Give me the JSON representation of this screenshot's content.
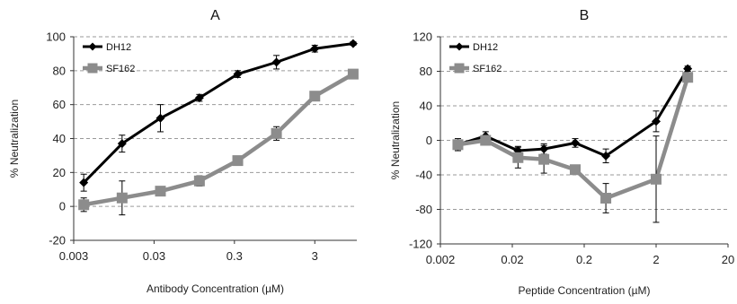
{
  "chart_data": [
    {
      "type": "line",
      "title": "A",
      "xlabel": "Antibody Concentration (µM)",
      "ylabel": "% Neutralization",
      "x_scale": "log",
      "xlim": [
        0.003,
        10
      ],
      "ylim": [
        -20,
        100
      ],
      "yticks": [
        -20,
        0,
        20,
        40,
        60,
        80,
        100
      ],
      "xticks": [
        0.003,
        0.03,
        0.3,
        3
      ],
      "xtick_labels": [
        "0.003",
        "0.03",
        "0.3",
        "3"
      ],
      "ytick_labels": [
        "-20",
        "0",
        "20",
        "40",
        "60",
        "80",
        "100"
      ],
      "grid": "horizontal dashed",
      "legend_position": "top-left",
      "series": [
        {
          "name": "DH12",
          "color": "#000000",
          "marker": "diamond",
          "x": [
            0.004,
            0.012,
            0.036,
            0.11,
            0.33,
            1.0,
            3.0,
            9.0
          ],
          "y": [
            14,
            37,
            52,
            64,
            78,
            85,
            93,
            96
          ],
          "err": [
            5,
            5,
            8,
            2,
            2,
            4,
            2,
            1
          ]
        },
        {
          "name": "SF162",
          "color": "#8c8c8c",
          "marker": "square",
          "x": [
            0.004,
            0.012,
            0.036,
            0.11,
            0.33,
            1.0,
            3.0,
            9.0
          ],
          "y": [
            1,
            5,
            9,
            15,
            27,
            43,
            65,
            78
          ],
          "err": [
            4,
            10,
            0,
            3,
            0,
            4,
            0,
            0
          ]
        }
      ]
    },
    {
      "type": "line",
      "title": "B",
      "xlabel": "Peptide Concentration (µM)",
      "ylabel": "% Neutralization",
      "x_scale": "log",
      "xlim": [
        0.002,
        20
      ],
      "ylim": [
        -120,
        120
      ],
      "yticks": [
        -120,
        -80,
        -40,
        0,
        40,
        80,
        120
      ],
      "xticks": [
        0.002,
        0.02,
        0.2,
        2,
        20
      ],
      "xtick_labels": [
        "0.002",
        "0.02",
        "0.2",
        "2",
        "20"
      ],
      "ytick_labels": [
        "-120",
        "-80",
        "-40",
        "0",
        "40",
        "80",
        "120"
      ],
      "grid": "horizontal dashed",
      "legend_position": "top-left",
      "series": [
        {
          "name": "DH12",
          "color": "#000000",
          "marker": "diamond",
          "x": [
            0.0035,
            0.0085,
            0.024,
            0.055,
            0.15,
            0.4,
            2.0,
            5.5
          ],
          "y": [
            -5,
            5,
            -12,
            -10,
            -3,
            -18,
            22,
            83
          ],
          "err": [
            5,
            5,
            5,
            6,
            5,
            8,
            12,
            3
          ]
        },
        {
          "name": "SF162",
          "color": "#8c8c8c",
          "marker": "square",
          "x": [
            0.0035,
            0.0085,
            0.024,
            0.055,
            0.15,
            0.4,
            2.0,
            5.5
          ],
          "y": [
            -5,
            0,
            -20,
            -22,
            -34,
            -67,
            -45,
            73
          ],
          "err": [
            7,
            4,
            12,
            16,
            0,
            17,
            50,
            0
          ]
        }
      ]
    }
  ]
}
